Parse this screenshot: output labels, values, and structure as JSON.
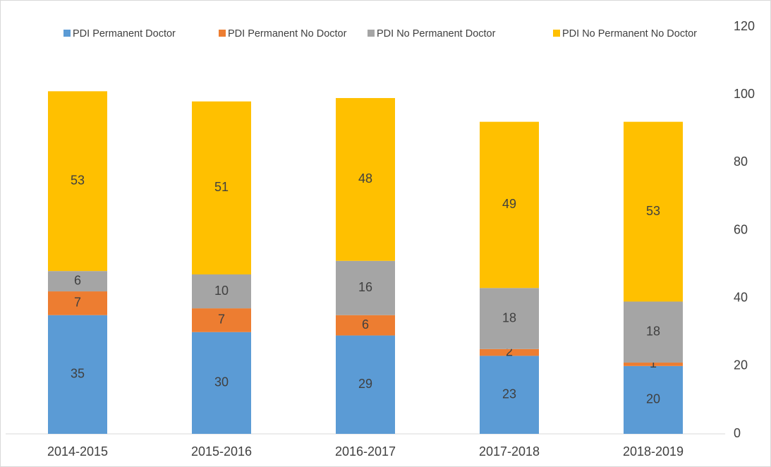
{
  "chart_data": {
    "type": "bar",
    "stacked": true,
    "categories": [
      "2014-2015",
      "2015-2016",
      "2016-2017",
      "2017-2018",
      "2018-2019"
    ],
    "series": [
      {
        "name": "PDI Permanent Doctor",
        "color": "#5b9bd5",
        "values": [
          35,
          30,
          29,
          23,
          20
        ]
      },
      {
        "name": "PDI Permanent No Doctor",
        "color": "#ed7d31",
        "values": [
          7,
          7,
          6,
          2,
          1
        ]
      },
      {
        "name": "PDI No Permanent Doctor",
        "color": "#a5a5a5",
        "values": [
          6,
          10,
          16,
          18,
          18
        ]
      },
      {
        "name": "PDI No Permanent No Doctor",
        "color": "#ffc000",
        "values": [
          53,
          51,
          48,
          49,
          53
        ]
      }
    ],
    "ylim": [
      0,
      120
    ],
    "yticks": [
      0,
      20,
      40,
      60,
      80,
      100,
      120
    ],
    "y_axis_side": "right",
    "legend": "top"
  }
}
